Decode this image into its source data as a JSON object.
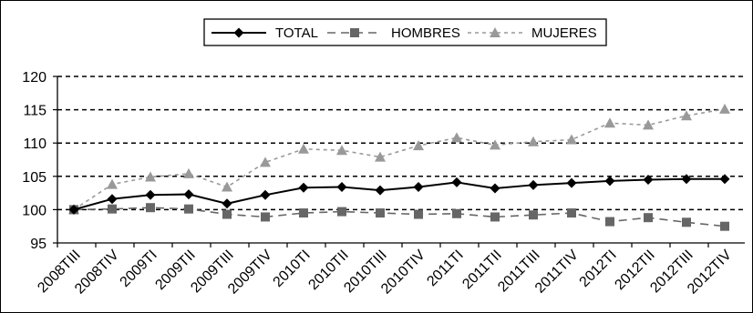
{
  "chart_data": {
    "type": "line",
    "title": "",
    "xlabel": "",
    "ylabel": "",
    "categories": [
      "2008TIII",
      "2008TIV",
      "2009TI",
      "2009TII",
      "2009TIII",
      "2009TIV",
      "2010TI",
      "2010TII",
      "2010TIII",
      "2010TIV",
      "2011TI",
      "2011TII",
      "2011TIII",
      "2011TIV",
      "2012TI",
      "2012TII",
      "2012TIII",
      "2012TIV"
    ],
    "ylim": [
      95,
      120
    ],
    "yticks": [
      95,
      100,
      105,
      110,
      115,
      120
    ],
    "grid": "horizontal-dashed",
    "legend_position": "top-center",
    "series": [
      {
        "name": "TOTAL",
        "color": "#000000",
        "marker": "diamond",
        "line": "solid",
        "values": [
          100.0,
          101.6,
          102.2,
          102.3,
          100.9,
          102.2,
          103.3,
          103.4,
          102.9,
          103.4,
          104.1,
          103.2,
          103.7,
          104.0,
          104.3,
          104.5,
          104.6,
          104.6
        ]
      },
      {
        "name": "HOMBRES",
        "color": "#666666",
        "marker": "square",
        "line": "dashed",
        "values": [
          100.0,
          100.1,
          100.3,
          100.1,
          99.3,
          98.9,
          99.5,
          99.7,
          99.5,
          99.3,
          99.4,
          98.9,
          99.2,
          99.5,
          98.2,
          98.8,
          98.1,
          97.5
        ]
      },
      {
        "name": "MUJERES",
        "color": "#999999",
        "marker": "triangle",
        "line": "dotted",
        "values": [
          100.0,
          103.8,
          104.9,
          105.4,
          103.4,
          107.1,
          109.1,
          108.9,
          107.9,
          109.6,
          110.8,
          109.7,
          110.2,
          110.5,
          113.0,
          112.7,
          114.1,
          115.1
        ]
      }
    ]
  }
}
